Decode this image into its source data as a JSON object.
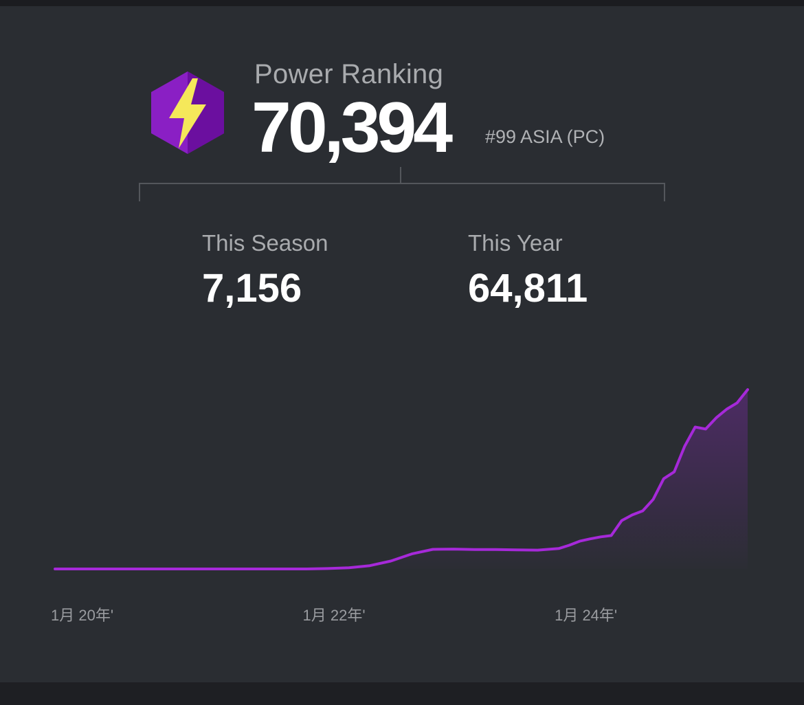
{
  "power_ranking": {
    "label": "Power Ranking",
    "value": "70,394",
    "region_rank": "#99 ASIA (PC)",
    "icon": "lightning-bolt-hexagon-icon"
  },
  "stats": {
    "season_label": "This Season",
    "season_value": "7,156",
    "year_label": "This Year",
    "year_value": "64,811"
  },
  "colors": {
    "background": "#2a2d32",
    "line": "#a629d9",
    "badge_purple": "#8a1fc4",
    "bolt_yellow": "#f5e85a"
  },
  "chart_data": {
    "type": "area",
    "title": "",
    "xlabel": "",
    "ylabel": "",
    "x_tick_labels": [
      "1月 20年'",
      "1月 22年'",
      "1月 24年'"
    ],
    "x_tick_dates": [
      "2020-01",
      "2022-01",
      "2024-01"
    ],
    "ylim": [
      0,
      70394
    ],
    "grid": false,
    "series": [
      {
        "dates": [
          "2020-01",
          "2020-07",
          "2021-01",
          "2021-07",
          "2022-01",
          "2022-03",
          "2022-05",
          "2022-07",
          "2022-09",
          "2022-11",
          "2023-01",
          "2023-03",
          "2023-05",
          "2023-07",
          "2023-09",
          "2023-11",
          "2024-01",
          "2024-02",
          "2024-03",
          "2024-04",
          "2024-05",
          "2024-06",
          "2024-07",
          "2024-08",
          "2024-09",
          "2024-10",
          "2024-11",
          "2024-12",
          "2025-01",
          "2025-02",
          "2025-03",
          "2025-04",
          "2025-05",
          "2025-06",
          "2025-07"
        ],
        "values": [
          0,
          0,
          0,
          0,
          0,
          150,
          450,
          1300,
          3100,
          5900,
          7700,
          7800,
          7600,
          7600,
          7500,
          7400,
          8000,
          9300,
          10900,
          11800,
          12600,
          13100,
          19000,
          21200,
          22800,
          27300,
          35400,
          38100,
          48200,
          55700,
          54900,
          59300,
          62700,
          65200,
          70394
        ]
      }
    ]
  }
}
